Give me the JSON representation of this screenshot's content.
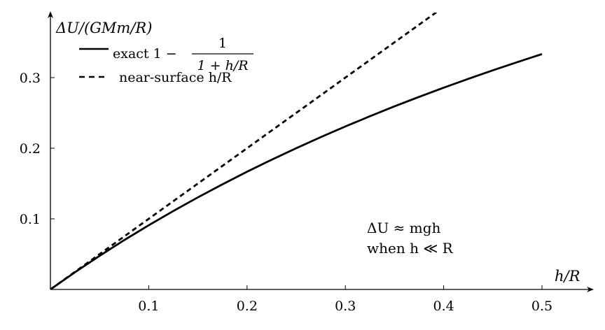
{
  "chart_data": {
    "type": "line",
    "title": "",
    "xlabel": "h/R",
    "ylabel": "ΔU/(GMm/R)",
    "xlim": [
      0,
      0.55
    ],
    "ylim": [
      0,
      0.39
    ],
    "x_ticks": [
      {
        "value": 0.1,
        "label": "0.1"
      },
      {
        "value": 0.2,
        "label": "0.2"
      },
      {
        "value": 0.3,
        "label": "0.3"
      },
      {
        "value": 0.4,
        "label": "0.4"
      },
      {
        "value": 0.5,
        "label": "0.5"
      }
    ],
    "y_ticks": [
      {
        "value": 0.1,
        "label": "0.1"
      },
      {
        "value": 0.2,
        "label": "0.2"
      },
      {
        "value": 0.3,
        "label": "0.3"
      }
    ],
    "grid": false,
    "legend_position": "top-left",
    "series": [
      {
        "name": "exact 1 − 1/(1+h/R)",
        "legend_prefix": "exact 1 −",
        "legend_numerator": "1",
        "legend_denominator": "1 + h/R",
        "style": "solid",
        "color": "#000000",
        "x": [
          0,
          0.025,
          0.05,
          0.075,
          0.1,
          0.125,
          0.15,
          0.175,
          0.2,
          0.225,
          0.25,
          0.275,
          0.3,
          0.325,
          0.35,
          0.375,
          0.4,
          0.425,
          0.45,
          0.475,
          0.5
        ],
        "y": [
          0,
          0.0244,
          0.0476,
          0.0698,
          0.0909,
          0.1111,
          0.1304,
          0.1489,
          0.1667,
          0.1837,
          0.2,
          0.2157,
          0.2308,
          0.2453,
          0.2593,
          0.2727,
          0.2857,
          0.2982,
          0.3103,
          0.322,
          0.3333
        ]
      },
      {
        "name": "near-surface h/R",
        "style": "dashed",
        "color": "#000000",
        "x": [
          0,
          0.5
        ],
        "y": [
          0,
          0.5
        ]
      }
    ],
    "annotations": [
      {
        "lines": [
          "ΔU ≈ mgh",
          "when h ≪ R"
        ],
        "x": 0.325,
        "y": 0.095
      }
    ]
  }
}
